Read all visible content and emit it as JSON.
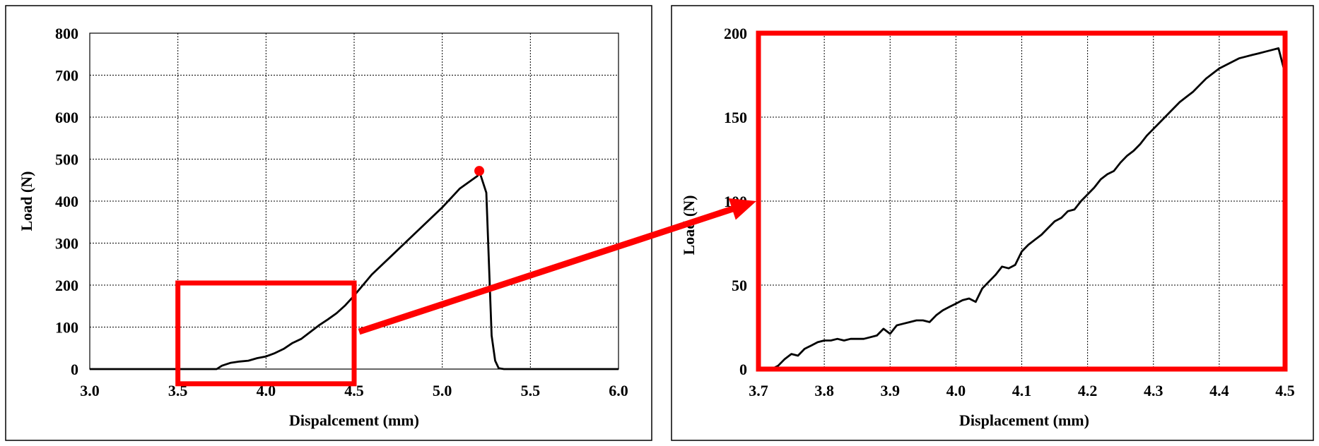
{
  "colors": {
    "highlight": "#ff0000",
    "curve": "#000000"
  },
  "chart_data": [
    {
      "type": "line",
      "xlabel": "Dispalcement   (mm)",
      "ylabel": "Load   (N)",
      "xlim": [
        3.0,
        6.0
      ],
      "ylim": [
        0,
        800
      ],
      "xticks": [
        "3.0",
        "3.5",
        "4.0",
        "4.5",
        "5.0",
        "5.5",
        "6.0"
      ],
      "yticks": [
        "0",
        "100",
        "200",
        "300",
        "400",
        "500",
        "600",
        "700",
        "800"
      ],
      "grid": true,
      "series": [
        {
          "x": [
            3.0,
            3.5,
            3.72,
            3.75,
            3.8,
            3.85,
            3.9,
            3.95,
            4.0,
            4.05,
            4.1,
            4.15,
            4.2,
            4.25,
            4.3,
            4.35,
            4.4,
            4.45,
            4.5,
            4.6,
            4.7,
            4.8,
            4.9,
            5.0,
            5.1,
            5.2,
            5.21,
            5.25,
            5.28,
            5.3,
            5.32,
            5.35,
            6.0
          ],
          "y": [
            0,
            0,
            0,
            8,
            15,
            18,
            20,
            26,
            30,
            38,
            48,
            62,
            72,
            88,
            104,
            118,
            133,
            152,
            175,
            225,
            265,
            305,
            345,
            385,
            430,
            460,
            472,
            420,
            80,
            20,
            2,
            0,
            0
          ]
        }
      ],
      "annotations": [
        {
          "type": "point",
          "x": 5.21,
          "y": 472,
          "color": "#ff0000"
        },
        {
          "type": "zoom-box",
          "x": [
            3.5,
            4.5
          ],
          "y": [
            -35,
            205
          ],
          "color": "#ff0000"
        }
      ]
    },
    {
      "type": "line",
      "xlabel": "Displacement   (mm)",
      "ylabel": "Load   (N)",
      "xlim": [
        3.7,
        4.5
      ],
      "ylim": [
        0,
        200
      ],
      "xticks": [
        "3.7",
        "3.8",
        "3.9",
        "4.0",
        "4.1",
        "4.2",
        "4.3",
        "4.4",
        "4.5"
      ],
      "yticks": [
        "0",
        "50",
        "100",
        "150",
        "200"
      ],
      "grid": true,
      "series": [
        {
          "x": [
            3.72,
            3.73,
            3.74,
            3.75,
            3.76,
            3.77,
            3.78,
            3.79,
            3.8,
            3.81,
            3.82,
            3.83,
            3.84,
            3.85,
            3.86,
            3.87,
            3.88,
            3.89,
            3.9,
            3.91,
            3.92,
            3.93,
            3.94,
            3.95,
            3.96,
            3.97,
            3.98,
            3.99,
            4.0,
            4.01,
            4.02,
            4.03,
            4.04,
            4.05,
            4.06,
            4.07,
            4.08,
            4.09,
            4.1,
            4.11,
            4.12,
            4.13,
            4.14,
            4.15,
            4.16,
            4.17,
            4.18,
            4.19,
            4.2,
            4.21,
            4.22,
            4.23,
            4.24,
            4.25,
            4.26,
            4.27,
            4.28,
            4.29,
            4.3,
            4.31,
            4.32,
            4.33,
            4.34,
            4.35,
            4.36,
            4.37,
            4.38,
            4.39,
            4.4,
            4.41,
            4.42,
            4.43,
            4.44,
            4.45,
            4.46,
            4.47,
            4.48,
            4.49,
            4.5
          ],
          "y": [
            0,
            2,
            6,
            9,
            8,
            12,
            14,
            16,
            17,
            17,
            18,
            17,
            18,
            18,
            18,
            19,
            20,
            24,
            21,
            26,
            27,
            28,
            29,
            29,
            28,
            32,
            35,
            37,
            39,
            41,
            42,
            40,
            48,
            52,
            56,
            61,
            60,
            62,
            70,
            74,
            77,
            80,
            84,
            88,
            90,
            94,
            95,
            100,
            104,
            108,
            113,
            116,
            118,
            123,
            127,
            130,
            134,
            139,
            143,
            147,
            151,
            155,
            159,
            162,
            165,
            169,
            173,
            176,
            179,
            181,
            183,
            185,
            186,
            187,
            188,
            189,
            190,
            191,
            176
          ]
        }
      ],
      "annotations": [
        {
          "type": "zoom-frame",
          "color": "#ff0000"
        }
      ]
    }
  ]
}
